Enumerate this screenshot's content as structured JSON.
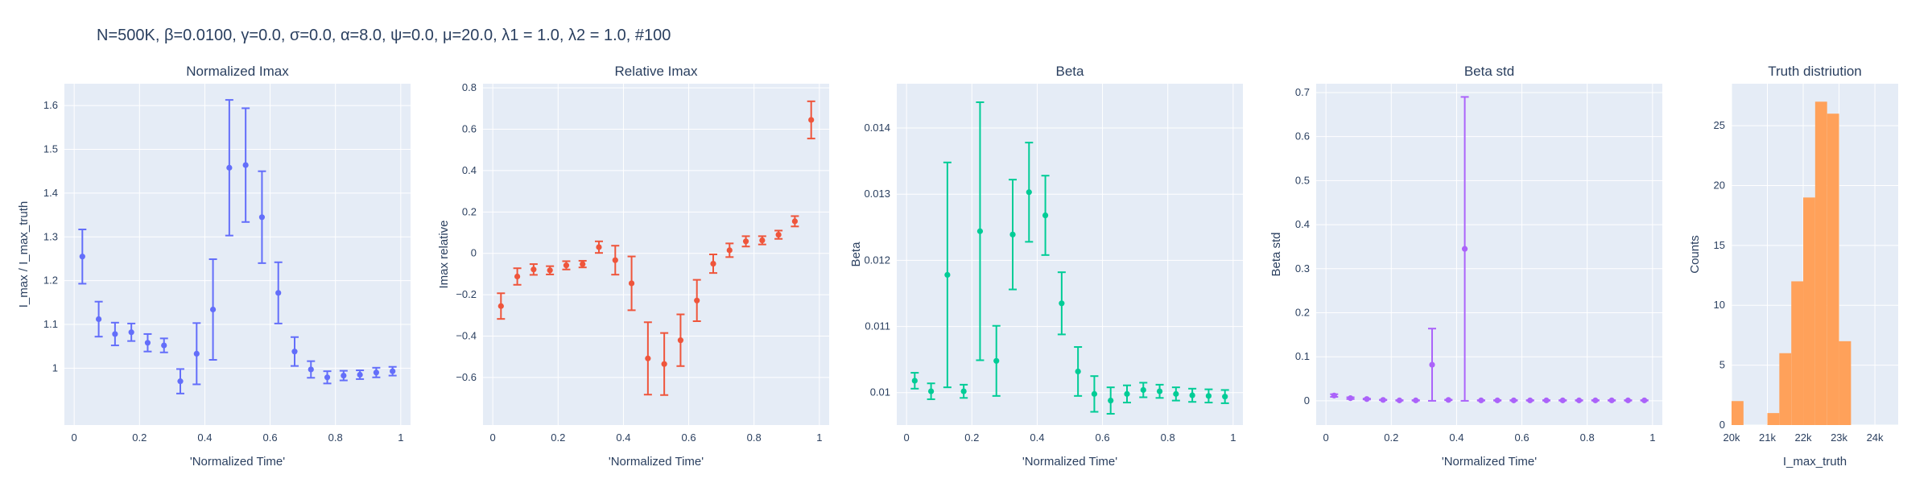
{
  "figure": {
    "suptitle": "N=500K, β=0.0100, γ=0.0, σ=0.0,  α=8.0, ψ=0.0, μ=20.0, λ1 = 1.0, λ2 = 1.0, #100",
    "background": "#ffffff",
    "plot_bg": "#e5ecf6",
    "grid_color": "#ffffff"
  },
  "chart_data": [
    {
      "type": "scatter",
      "title": "Normalized Imax",
      "xlabel": "'Normalized Time'",
      "ylabel": "I_max / I_max_truth",
      "color": "#636efa",
      "xlim": [
        -0.03,
        1.03
      ],
      "ylim": [
        0.87,
        1.65
      ],
      "xticks": [
        0,
        0.2,
        0.4,
        0.6,
        0.8,
        1
      ],
      "xticklabels": [
        "0",
        "0.2",
        "0.4",
        "0.6",
        "0.8",
        "1"
      ],
      "yticks": [
        1,
        1.1,
        1.2,
        1.3,
        1.4,
        1.5,
        1.6
      ],
      "yticklabels": [
        "1",
        "1.1",
        "1.2",
        "1.3",
        "1.4",
        "1.5",
        "1.6"
      ],
      "x": [
        0.025,
        0.075,
        0.125,
        0.175,
        0.225,
        0.275,
        0.325,
        0.375,
        0.425,
        0.475,
        0.525,
        0.575,
        0.625,
        0.675,
        0.725,
        0.775,
        0.825,
        0.875,
        0.925,
        0.975
      ],
      "y": [
        1.255,
        1.112,
        1.078,
        1.082,
        1.058,
        1.052,
        0.97,
        1.033,
        1.134,
        1.458,
        1.464,
        1.345,
        1.172,
        1.038,
        0.997,
        0.979,
        0.983,
        0.985,
        0.99,
        0.993
      ],
      "err": [
        0.062,
        0.04,
        0.026,
        0.02,
        0.02,
        0.016,
        0.028,
        0.07,
        0.115,
        0.155,
        0.13,
        0.105,
        0.07,
        0.033,
        0.019,
        0.014,
        0.011,
        0.01,
        0.011,
        0.01
      ]
    },
    {
      "type": "scatter",
      "title": "Relative Imax",
      "xlabel": "'Normalized Time'",
      "ylabel": "Imax relative",
      "color": "#ef553b",
      "xlim": [
        -0.03,
        1.03
      ],
      "ylim": [
        -0.83,
        0.82
      ],
      "xticks": [
        0,
        0.2,
        0.4,
        0.6,
        0.8,
        1
      ],
      "xticklabels": [
        "0",
        "0.2",
        "0.4",
        "0.6",
        "0.8",
        "1"
      ],
      "yticks": [
        -0.6,
        -0.4,
        -0.2,
        0,
        0.2,
        0.4,
        0.6,
        0.8
      ],
      "yticklabels": [
        "−0.6",
        "−0.4",
        "−0.2",
        "0",
        "0.2",
        "0.4",
        "0.6",
        "0.8"
      ],
      "x": [
        0.025,
        0.075,
        0.125,
        0.175,
        0.225,
        0.275,
        0.325,
        0.375,
        0.425,
        0.475,
        0.525,
        0.575,
        0.625,
        0.675,
        0.725,
        0.775,
        0.825,
        0.875,
        0.925,
        0.975
      ],
      "y": [
        -0.255,
        -0.112,
        -0.078,
        -0.082,
        -0.058,
        -0.052,
        0.03,
        -0.033,
        -0.145,
        -0.508,
        -0.535,
        -0.42,
        -0.228,
        -0.05,
        0.015,
        0.058,
        0.063,
        0.09,
        0.155,
        0.645
      ],
      "err": [
        0.062,
        0.04,
        0.026,
        0.02,
        0.02,
        0.016,
        0.028,
        0.07,
        0.13,
        0.175,
        0.15,
        0.125,
        0.1,
        0.045,
        0.033,
        0.025,
        0.02,
        0.02,
        0.025,
        0.09
      ]
    },
    {
      "type": "scatter",
      "title": "Beta",
      "xlabel": "'Normalized Time'",
      "ylabel": "Beta",
      "color": "#00cc96",
      "xlim": [
        -0.03,
        1.03
      ],
      "ylim": [
        0.00951,
        0.01467
      ],
      "xticks": [
        0,
        0.2,
        0.4,
        0.6,
        0.8,
        1
      ],
      "xticklabels": [
        "0",
        "0.2",
        "0.4",
        "0.6",
        "0.8",
        "1"
      ],
      "yticks": [
        0.01,
        0.011,
        0.012,
        0.013,
        0.014
      ],
      "yticklabels": [
        "0.01",
        "0.011",
        "0.012",
        "0.013",
        "0.014"
      ],
      "x": [
        0.025,
        0.075,
        0.125,
        0.175,
        0.225,
        0.275,
        0.325,
        0.375,
        0.425,
        0.475,
        0.525,
        0.575,
        0.625,
        0.675,
        0.725,
        0.775,
        0.825,
        0.875,
        0.925,
        0.975
      ],
      "y": [
        0.01018,
        0.01002,
        0.01178,
        0.01002,
        0.01244,
        0.01048,
        0.01239,
        0.01303,
        0.01268,
        0.01135,
        0.01032,
        0.00998,
        0.00988,
        0.00998,
        0.01004,
        0.01002,
        0.00998,
        0.00996,
        0.00995,
        0.00994
      ],
      "err": [
        0.00012,
        0.00012,
        0.0017,
        0.0001,
        0.00195,
        0.00053,
        0.00083,
        0.00075,
        0.0006,
        0.00047,
        0.00037,
        0.00027,
        0.0002,
        0.00013,
        0.00011,
        0.0001,
        0.0001,
        0.0001,
        0.0001,
        0.0001
      ]
    },
    {
      "type": "scatter",
      "title": "Beta std",
      "xlabel": "'Normalized Time'",
      "ylabel": "Beta std",
      "color": "#ab63fa",
      "xlim": [
        -0.03,
        1.03
      ],
      "ylim": [
        -0.055,
        0.72
      ],
      "xticks": [
        0,
        0.2,
        0.4,
        0.6,
        0.8,
        1
      ],
      "xticklabels": [
        "0",
        "0.2",
        "0.4",
        "0.6",
        "0.8",
        "1"
      ],
      "yticks": [
        0,
        0.1,
        0.2,
        0.3,
        0.4,
        0.5,
        0.6,
        0.7
      ],
      "yticklabels": [
        "0",
        "0.1",
        "0.2",
        "0.3",
        "0.4",
        "0.5",
        "0.6",
        "0.7"
      ],
      "x": [
        0.025,
        0.075,
        0.125,
        0.175,
        0.225,
        0.275,
        0.325,
        0.375,
        0.425,
        0.475,
        0.525,
        0.575,
        0.625,
        0.675,
        0.725,
        0.775,
        0.825,
        0.875,
        0.925,
        0.975
      ],
      "y": [
        0.012,
        0.006,
        0.004,
        0.002,
        0.001,
        0.001,
        0.082,
        0.002,
        0.345,
        0.001,
        0.001,
        0.001,
        0.001,
        0.001,
        0.001,
        0.001,
        0.001,
        0.001,
        0.001,
        0.001
      ],
      "err": [
        0.003,
        0.002,
        0.001,
        0.0005,
        0.0005,
        0.0005,
        0.082,
        0.0005,
        0.345,
        0.0005,
        0.0005,
        0.0005,
        0.0005,
        0.0005,
        0.0005,
        0.0005,
        0.0005,
        0.0005,
        0.0005,
        0.0005
      ]
    },
    {
      "type": "bar",
      "title": "Truth distriution",
      "xlabel": "I_max_truth",
      "ylabel": "Counts",
      "color": "#ffa15a",
      "xlim": [
        20000,
        24650
      ],
      "ylim": [
        0,
        28.5
      ],
      "xticks": [
        20000,
        21000,
        22000,
        23000,
        24000
      ],
      "xticklabels": [
        "20k",
        "21k",
        "22k",
        "23k",
        "24k"
      ],
      "yticks": [
        0,
        5,
        10,
        15,
        20,
        25
      ],
      "yticklabels": [
        "0",
        "5",
        "10",
        "15",
        "20",
        "25"
      ],
      "bin_width": 333,
      "bins": [
        20000,
        20333,
        20667,
        21000,
        21333,
        21667,
        22000,
        22333,
        22667,
        23000,
        23333,
        23667,
        24000,
        24333
      ],
      "counts": [
        2,
        0,
        0,
        1,
        6,
        12,
        19,
        27,
        26,
        7,
        0,
        0,
        0,
        0
      ]
    }
  ]
}
